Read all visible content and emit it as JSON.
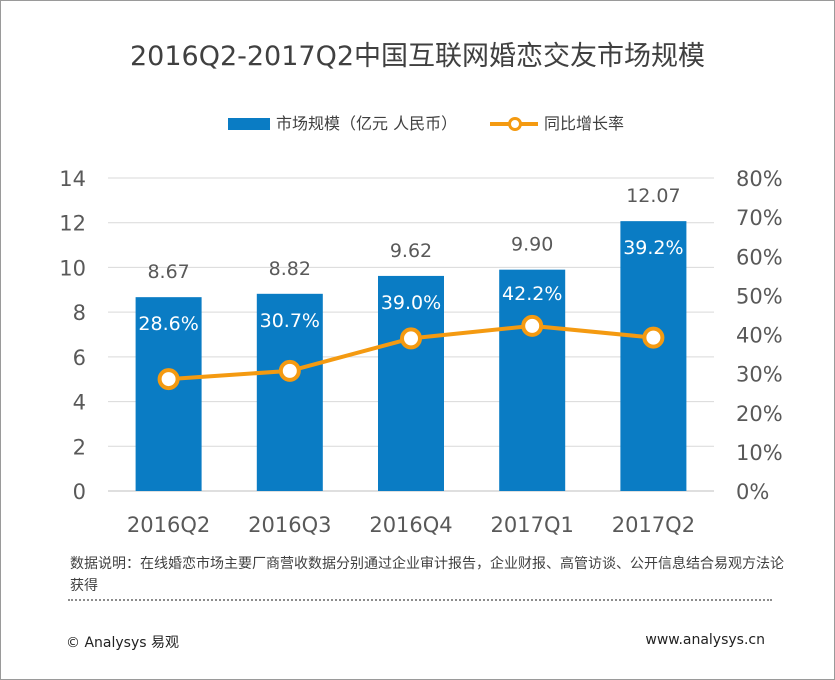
{
  "chart_data": {
    "type": "bar",
    "title": "2016Q2-2017Q2中国互联网婚恋交友市场规模",
    "categories": [
      "2016Q2",
      "2016Q3",
      "2016Q4",
      "2017Q1",
      "2017Q2"
    ],
    "series": [
      {
        "name": "市场规模（亿元 人民币）",
        "type": "bar",
        "axis": "left",
        "values": [
          8.67,
          8.82,
          9.62,
          9.9,
          12.07
        ],
        "labels": [
          "8.67",
          "8.82",
          "9.62",
          "9.90",
          "12.07"
        ],
        "color": "#0a7cc4"
      },
      {
        "name": "同比增长率",
        "type": "line",
        "axis": "right",
        "values": [
          28.6,
          30.7,
          39.0,
          42.2,
          39.2
        ],
        "labels": [
          "28.6%",
          "30.7%",
          "39.0%",
          "42.2%",
          "39.2%"
        ],
        "color": "#f49a11"
      }
    ],
    "y_left": {
      "min": 0,
      "max": 14,
      "ticks": [
        "0",
        "2",
        "4",
        "6",
        "8",
        "10",
        "12",
        "14"
      ]
    },
    "y_right": {
      "min": 0,
      "max": 80,
      "ticks": [
        "0%",
        "10%",
        "20%",
        "30%",
        "40%",
        "50%",
        "60%",
        "70%",
        "80%"
      ]
    },
    "grid": true,
    "legend_position": "top-center"
  },
  "legend": {
    "bar_label": "市场规模（亿元 人民币）",
    "line_label": "同比增长率"
  },
  "note": "数据说明：在线婚恋市场主要厂商营收数据分别通过企业审计报告，企业财报、高管访谈、公开信息结合易观方法论获得",
  "footer": {
    "left": "© Analysys 易观",
    "right": "www.analysys.cn"
  }
}
